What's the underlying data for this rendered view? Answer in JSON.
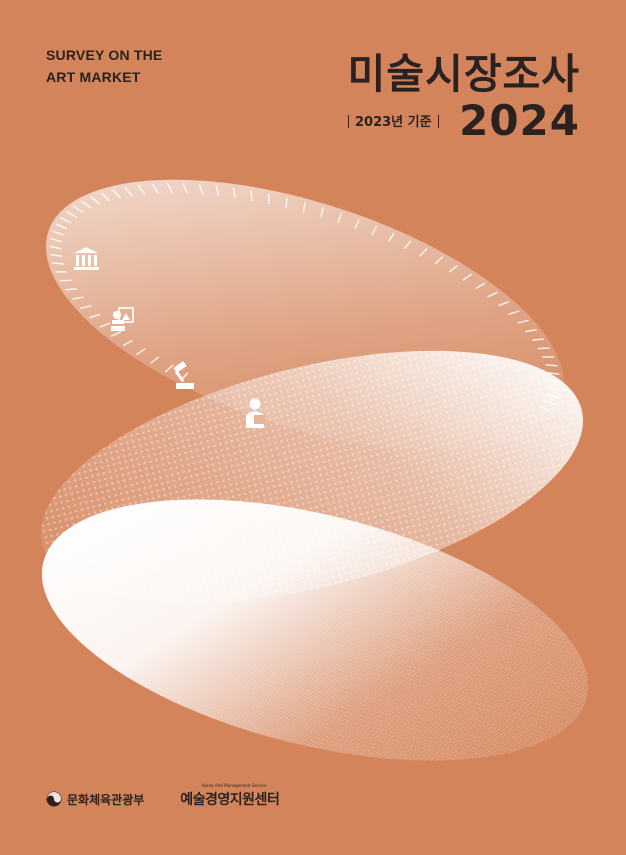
{
  "cover": {
    "subtitle_en_line1": "SURVEY ON THE",
    "subtitle_en_line2": "ART MARKET",
    "title_ko": "미술시장조사",
    "year_basis": "2023년 기준",
    "year": "2024"
  },
  "icons": [
    "museum-icon",
    "art-exhibition-icon",
    "auction-gavel-icon",
    "collector-icon"
  ],
  "footer": {
    "ministry": "문화체육관광부",
    "kams_small": "Korea Arts Management Service",
    "kams": "예술경영지원센터"
  },
  "colors": {
    "background": "#d4845a",
    "text": "#2a2220",
    "ellipse_highlight": "#ffffff"
  }
}
